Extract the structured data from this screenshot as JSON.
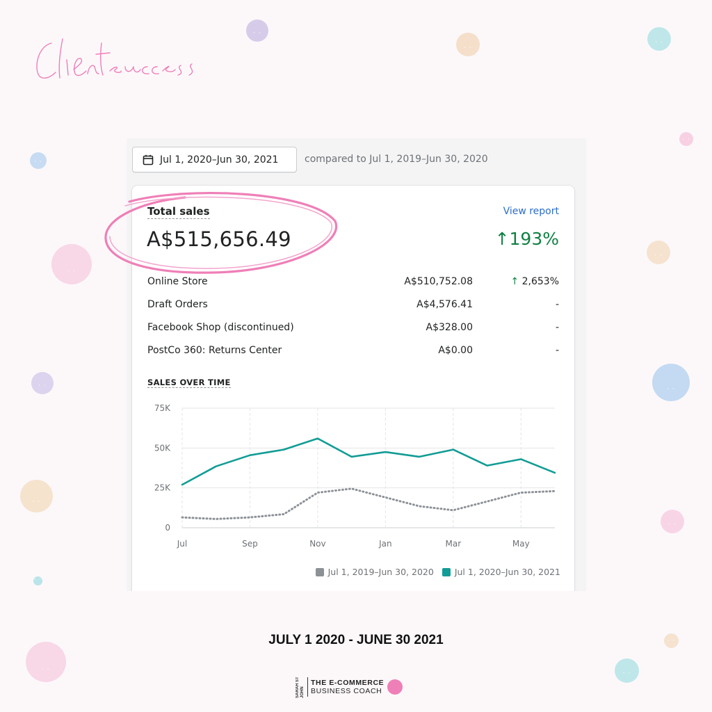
{
  "header": {
    "script_title": "Client success"
  },
  "date_picker": {
    "range": "Jul 1, 2020–Jun 30, 2021",
    "compared": "compared to Jul 1, 2019–Jun 30, 2020"
  },
  "card": {
    "title": "Total sales",
    "view_report": "View report",
    "total": "A$515,656.49",
    "total_change": "193%",
    "rows": [
      {
        "name": "Online Store",
        "value": "A$510,752.08",
        "change": "2,653%",
        "up": true
      },
      {
        "name": "Draft Orders",
        "value": "A$4,576.41",
        "change": "-"
      },
      {
        "name": "Facebook Shop (discontinued)",
        "value": "A$328.00",
        "change": "-"
      },
      {
        "name": "PostCo 360: Returns Center",
        "value": "A$0.00",
        "change": "-"
      }
    ],
    "sales_over_time_label": "SALES OVER TIME"
  },
  "chart_data": {
    "type": "line",
    "title": "SALES OVER TIME",
    "y_ticks": [
      "0",
      "25K",
      "50K",
      "75K"
    ],
    "x_ticks": [
      "Jul",
      "Sep",
      "Nov",
      "Jan",
      "Mar",
      "May"
    ],
    "ylim": [
      0,
      75000
    ],
    "x": [
      "Jul",
      "Aug",
      "Sep",
      "Oct",
      "Nov",
      "Dec",
      "Jan",
      "Feb",
      "Mar",
      "Apr",
      "May",
      "Jun"
    ],
    "series": [
      {
        "name": "Jul 1, 2019–Jun 30, 2020",
        "color": "#8c9196",
        "style": "dotted",
        "values": [
          6500,
          5500,
          6500,
          8500,
          22000,
          24500,
          19000,
          13500,
          11000,
          16500,
          22000,
          23000
        ]
      },
      {
        "name": "Jul 1, 2020–Jun 30, 2021",
        "color": "#129c95",
        "style": "solid",
        "values": [
          27000,
          38500,
          45500,
          49000,
          56000,
          44500,
          47500,
          44500,
          49000,
          39000,
          43000,
          34500
        ]
      }
    ],
    "grid": true,
    "legend": "bottom-right"
  },
  "footer": {
    "date_range": "JULY 1 2020 - JUNE 30 2021",
    "brand_small": "SARAH ST JOHN",
    "brand_line1": "THE E-COMMERCE",
    "brand_line2": "BUSINESS COACH"
  },
  "colors": {
    "accent_pink": "#ef7fb7",
    "positive_green": "#108043",
    "link_blue": "#2c6ecb"
  }
}
